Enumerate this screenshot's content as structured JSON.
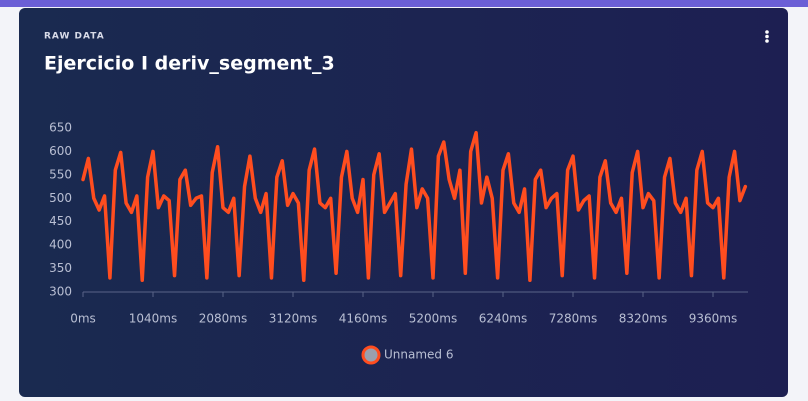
{
  "card": {
    "label": "RAW DATA"
  },
  "chart_data": {
    "type": "line",
    "title": "Ejercicio I deriv_segment_3",
    "x": [
      0,
      80,
      160,
      240,
      320,
      400,
      480,
      560,
      640,
      720,
      800,
      880,
      960,
      1040,
      1120,
      1200,
      1280,
      1360,
      1440,
      1520,
      1600,
      1680,
      1760,
      1840,
      1920,
      2000,
      2080,
      2160,
      2240,
      2320,
      2400,
      2480,
      2560,
      2640,
      2720,
      2800,
      2880,
      2960,
      3040,
      3120,
      3200,
      3280,
      3360,
      3440,
      3520,
      3600,
      3680,
      3760,
      3840,
      3920,
      4000,
      4080,
      4160,
      4240,
      4320,
      4400,
      4480,
      4560,
      4640,
      4720,
      4800,
      4880,
      4960,
      5040,
      5120,
      5200,
      5280,
      5360,
      5440,
      5520,
      5600,
      5680,
      5760,
      5840,
      5920,
      6000,
      6080,
      6160,
      6240,
      6320,
      6400,
      6480,
      6560,
      6640,
      6720,
      6800,
      6880,
      6960,
      7040,
      7120,
      7200,
      7280,
      7360,
      7440,
      7520,
      7600,
      7680,
      7760,
      7840,
      7920,
      8000,
      8080,
      8160,
      8240,
      8320,
      8400,
      8480,
      8560,
      8640,
      8720,
      8800,
      8880,
      8960,
      9040,
      9120,
      9200,
      9280,
      9360,
      9440,
      9520,
      9600,
      9680,
      9760,
      9840
    ],
    "series": [
      {
        "name": "Unnamed 6",
        "color": "#ff4d1f",
        "values": [
          540,
          585,
          500,
          475,
          505,
          330,
          560,
          598,
          490,
          470,
          505,
          325,
          545,
          600,
          480,
          505,
          495,
          335,
          540,
          560,
          485,
          500,
          505,
          330,
          555,
          610,
          480,
          470,
          500,
          335,
          525,
          590,
          500,
          470,
          510,
          330,
          545,
          580,
          485,
          510,
          490,
          325,
          560,
          605,
          490,
          480,
          500,
          340,
          545,
          600,
          500,
          470,
          540,
          330,
          550,
          595,
          470,
          490,
          510,
          335,
          530,
          605,
          480,
          520,
          500,
          330,
          590,
          620,
          540,
          500,
          560,
          340,
          600,
          640,
          490,
          545,
          500,
          330,
          560,
          595,
          490,
          470,
          520,
          325,
          540,
          560,
          480,
          500,
          510,
          335,
          560,
          590,
          475,
          495,
          505,
          330,
          545,
          580,
          490,
          470,
          500,
          340,
          555,
          600,
          480,
          510,
          495,
          330,
          545,
          585,
          490,
          470,
          500,
          335,
          560,
          600,
          490,
          480,
          500,
          330,
          545,
          600,
          495,
          525
        ]
      }
    ],
    "xlim": [
      0,
      9880
    ],
    "xticks": [
      {
        "value": 0,
        "label": "0ms"
      },
      {
        "value": 1040,
        "label": "1040ms"
      },
      {
        "value": 2080,
        "label": "2080ms"
      },
      {
        "value": 3120,
        "label": "3120ms"
      },
      {
        "value": 4160,
        "label": "4160ms"
      },
      {
        "value": 5200,
        "label": "5200ms"
      },
      {
        "value": 6240,
        "label": "6240ms"
      },
      {
        "value": 7280,
        "label": "7280ms"
      },
      {
        "value": 8320,
        "label": "8320ms"
      },
      {
        "value": 9360,
        "label": "9360ms"
      }
    ],
    "ylim": [
      300,
      650
    ],
    "yticks": [
      300,
      350,
      400,
      450,
      500,
      550,
      600,
      650
    ],
    "grid": false
  }
}
